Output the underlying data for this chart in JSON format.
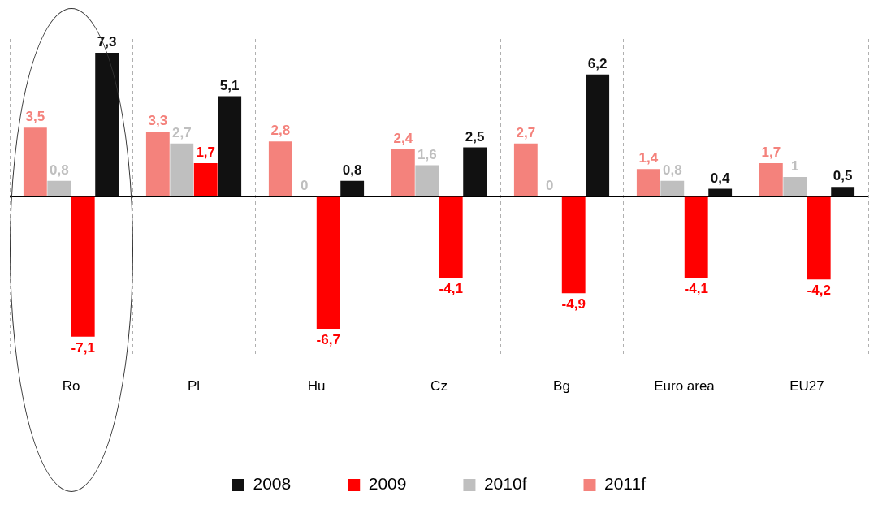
{
  "chart_data": {
    "type": "bar",
    "categories": [
      "Ro",
      "Pl",
      "Hu",
      "Cz",
      "Bg",
      "Euro area",
      "EU27"
    ],
    "series": [
      {
        "name": "2011f",
        "color": "#f4827c",
        "values": [
          3.5,
          3.3,
          2.8,
          2.4,
          2.7,
          1.4,
          1.7
        ],
        "value_labels": [
          "3,5",
          "3,3",
          "2,8",
          "2,4",
          "2,7",
          "1,4",
          "1,7"
        ]
      },
      {
        "name": "2010f",
        "color": "#bfbfbf",
        "values": [
          0.8,
          2.7,
          0,
          1.6,
          0,
          0.8,
          1
        ],
        "value_labels": [
          "0,8",
          "2,7",
          "0",
          "1,6",
          "0",
          "0,8",
          "1"
        ]
      },
      {
        "name": "2009",
        "color": "#ff0000",
        "values": [
          -7.1,
          1.7,
          -6.7,
          -4.1,
          -4.9,
          -4.1,
          -4.2
        ],
        "value_labels": [
          "-7,1",
          "1,7",
          "-6,7",
          "-4,1",
          "-4,9",
          "-4,1",
          "-4,2"
        ]
      },
      {
        "name": "2008",
        "color": "#111111",
        "values": [
          7.3,
          5.1,
          0.8,
          2.5,
          6.2,
          0.4,
          0.5
        ],
        "value_labels": [
          "7,3",
          "5,1",
          "0,8",
          "2,5",
          "6,2",
          "0,4",
          "0,5"
        ]
      }
    ],
    "legend": "bottom",
    "grid": "x"
  }
}
